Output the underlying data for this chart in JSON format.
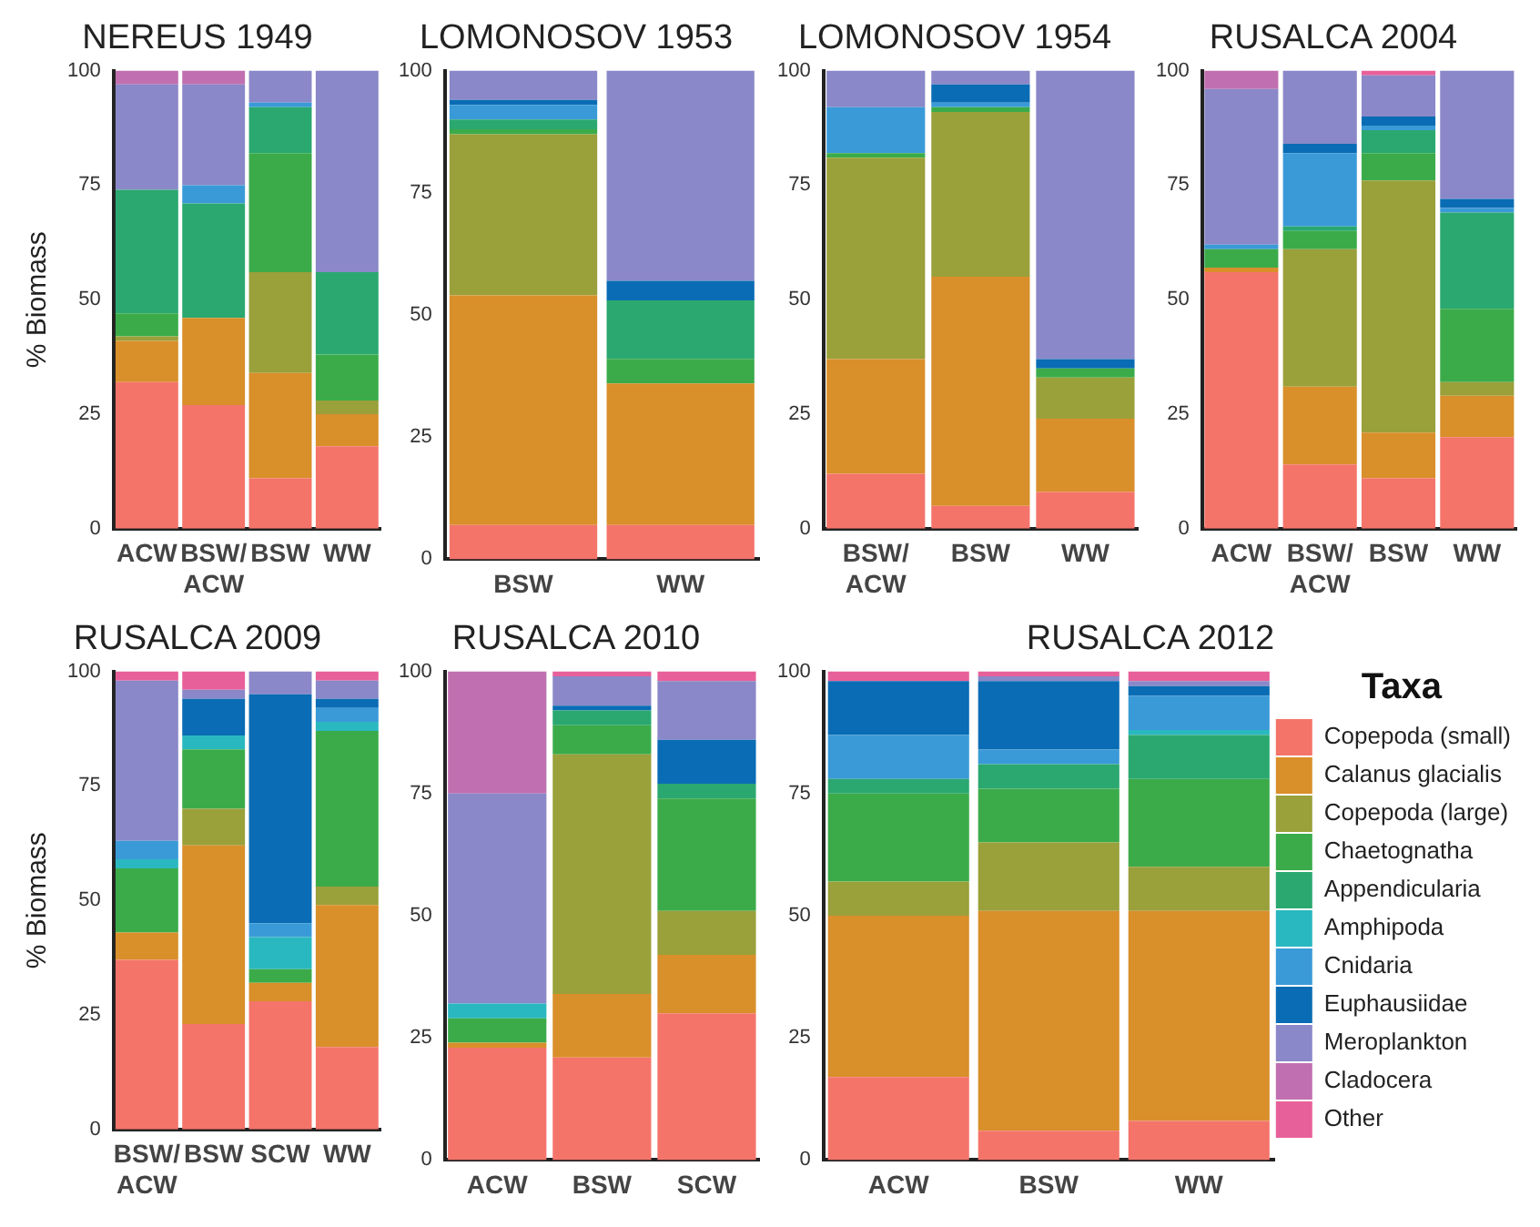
{
  "chart_data": [
    {
      "type": "bar",
      "title": "NEREUS 1949",
      "ylabel": "% Biomass",
      "categories": [
        "ACW",
        "BSW/ACW",
        "BSW",
        "WW"
      ],
      "stacked": true,
      "ylim": [
        0,
        100
      ],
      "yticks": [
        0,
        25,
        50,
        75,
        100
      ],
      "series": [
        {
          "color": "#f4746a",
          "values": [
            32,
            27,
            11,
            18
          ]
        },
        {
          "color": "#d98f2a",
          "values": [
            9,
            19,
            23,
            7
          ]
        },
        {
          "color": "#9aa03a",
          "values": [
            1,
            0,
            22,
            3
          ]
        },
        {
          "color": "#3bab4a",
          "values": [
            5,
            0,
            26,
            10
          ]
        },
        {
          "color": "#2aa870",
          "values": [
            27,
            25,
            10,
            18
          ]
        },
        {
          "color": "#2ab8c0",
          "values": [
            0,
            0,
            0,
            0
          ]
        },
        {
          "color": "#3a9ad8",
          "values": [
            0,
            4,
            1,
            0
          ]
        },
        {
          "color": "#0a6cb4",
          "values": [
            0,
            0,
            0,
            0
          ]
        },
        {
          "color": "#8a88c8",
          "values": [
            23,
            22,
            7,
            44
          ]
        },
        {
          "color": "#c070b0",
          "values": [
            3,
            3,
            0,
            0
          ]
        },
        {
          "color": "#e8609a",
          "values": [
            0,
            0,
            0,
            0
          ]
        }
      ]
    },
    {
      "type": "bar",
      "title": "LOMONOSOV 1953",
      "categories": [
        "BSW",
        "WW"
      ],
      "stacked": true,
      "ylim": [
        0,
        100
      ],
      "yticks": [
        0,
        25,
        50,
        75,
        100
      ],
      "series": [
        {
          "color": "#f4746a",
          "values": [
            7,
            7
          ]
        },
        {
          "color": "#d98f2a",
          "values": [
            47,
            29
          ]
        },
        {
          "color": "#9aa03a",
          "values": [
            33,
            0
          ]
        },
        {
          "color": "#3bab4a",
          "values": [
            1,
            5
          ]
        },
        {
          "color": "#2aa870",
          "values": [
            2,
            12
          ]
        },
        {
          "color": "#2ab8c0",
          "values": [
            0,
            0
          ]
        },
        {
          "color": "#3a9ad8",
          "values": [
            3,
            0
          ]
        },
        {
          "color": "#0a6cb4",
          "values": [
            1,
            4
          ]
        },
        {
          "color": "#8a88c8",
          "values": [
            6,
            43
          ]
        },
        {
          "color": "#c070b0",
          "values": [
            0,
            0
          ]
        },
        {
          "color": "#e8609a",
          "values": [
            0,
            0
          ]
        }
      ]
    },
    {
      "type": "bar",
      "title": "LOMONOSOV 1954",
      "categories": [
        "BSW/ACW",
        "BSW",
        "WW"
      ],
      "stacked": true,
      "ylim": [
        0,
        100
      ],
      "yticks": [
        0,
        25,
        50,
        75,
        100
      ],
      "series": [
        {
          "color": "#f4746a",
          "values": [
            12,
            5,
            8
          ]
        },
        {
          "color": "#d98f2a",
          "values": [
            25,
            50,
            16
          ]
        },
        {
          "color": "#9aa03a",
          "values": [
            44,
            36,
            9
          ]
        },
        {
          "color": "#3bab4a",
          "values": [
            1,
            1,
            2
          ]
        },
        {
          "color": "#2aa870",
          "values": [
            0,
            0,
            0
          ]
        },
        {
          "color": "#2ab8c0",
          "values": [
            0,
            0,
            0
          ]
        },
        {
          "color": "#3a9ad8",
          "values": [
            10,
            1,
            0
          ]
        },
        {
          "color": "#0a6cb4",
          "values": [
            0,
            4,
            2
          ]
        },
        {
          "color": "#8a88c8",
          "values": [
            8,
            3,
            63
          ]
        },
        {
          "color": "#c070b0",
          "values": [
            0,
            0,
            0
          ]
        },
        {
          "color": "#e8609a",
          "values": [
            0,
            0,
            0
          ]
        }
      ]
    },
    {
      "type": "bar",
      "title": "RUSALCA 2004",
      "categories": [
        "ACW",
        "BSW/ACW",
        "BSW",
        "WW"
      ],
      "stacked": true,
      "ylim": [
        0,
        100
      ],
      "yticks": [
        0,
        25,
        50,
        75,
        100
      ],
      "series": [
        {
          "color": "#f4746a",
          "values": [
            56,
            14,
            11,
            20
          ]
        },
        {
          "color": "#d98f2a",
          "values": [
            1,
            17,
            10,
            9
          ]
        },
        {
          "color": "#9aa03a",
          "values": [
            0,
            30,
            55,
            3
          ]
        },
        {
          "color": "#3bab4a",
          "values": [
            4,
            4,
            6,
            16
          ]
        },
        {
          "color": "#2aa870",
          "values": [
            0,
            1,
            5,
            21
          ]
        },
        {
          "color": "#2ab8c0",
          "values": [
            0,
            0,
            0,
            0
          ]
        },
        {
          "color": "#3a9ad8",
          "values": [
            1,
            16,
            1,
            1
          ]
        },
        {
          "color": "#0a6cb4",
          "values": [
            0,
            2,
            2,
            2
          ]
        },
        {
          "color": "#8a88c8",
          "values": [
            34,
            16,
            9,
            28
          ]
        },
        {
          "color": "#c070b0",
          "values": [
            4,
            0,
            0,
            0
          ]
        },
        {
          "color": "#e8609a",
          "values": [
            0,
            0,
            1,
            0
          ]
        }
      ]
    },
    {
      "type": "bar",
      "title": "RUSALCA 2009",
      "ylabel": "% Biomass",
      "categories": [
        "BSW/ACW",
        "BSW",
        "SCW",
        "WW"
      ],
      "stacked": true,
      "ylim": [
        0,
        100
      ],
      "yticks": [
        0,
        25,
        50,
        75,
        100
      ],
      "series": [
        {
          "color": "#f4746a",
          "values": [
            37,
            23,
            28,
            18
          ]
        },
        {
          "color": "#d98f2a",
          "values": [
            6,
            39,
            4,
            31
          ]
        },
        {
          "color": "#9aa03a",
          "values": [
            0,
            8,
            0,
            4
          ]
        },
        {
          "color": "#3bab4a",
          "values": [
            14,
            13,
            3,
            34
          ]
        },
        {
          "color": "#2aa870",
          "values": [
            0,
            0,
            0,
            0
          ]
        },
        {
          "color": "#2ab8c0",
          "values": [
            2,
            3,
            7,
            2
          ]
        },
        {
          "color": "#3a9ad8",
          "values": [
            4,
            0,
            3,
            3
          ]
        },
        {
          "color": "#0a6cb4",
          "values": [
            0,
            8,
            50,
            2
          ]
        },
        {
          "color": "#8a88c8",
          "values": [
            35,
            2,
            5,
            4
          ]
        },
        {
          "color": "#c070b0",
          "values": [
            0,
            0,
            0,
            0
          ]
        },
        {
          "color": "#e8609a",
          "values": [
            2,
            4,
            0,
            2
          ]
        }
      ]
    },
    {
      "type": "bar",
      "title": "RUSALCA 2010",
      "categories": [
        "ACW",
        "BSW",
        "SCW"
      ],
      "stacked": true,
      "ylim": [
        0,
        100
      ],
      "yticks": [
        0,
        25,
        50,
        75,
        100
      ],
      "series": [
        {
          "color": "#f4746a",
          "values": [
            23,
            21,
            30
          ]
        },
        {
          "color": "#d98f2a",
          "values": [
            1,
            13,
            12
          ]
        },
        {
          "color": "#9aa03a",
          "values": [
            0,
            49,
            9
          ]
        },
        {
          "color": "#3bab4a",
          "values": [
            5,
            6,
            23
          ]
        },
        {
          "color": "#2aa870",
          "values": [
            0,
            3,
            3
          ]
        },
        {
          "color": "#2ab8c0",
          "values": [
            3,
            0,
            0
          ]
        },
        {
          "color": "#3a9ad8",
          "values": [
            0,
            0,
            0
          ]
        },
        {
          "color": "#0a6cb4",
          "values": [
            0,
            1,
            9
          ]
        },
        {
          "color": "#8a88c8",
          "values": [
            43,
            6,
            12
          ]
        },
        {
          "color": "#c070b0",
          "values": [
            25,
            0,
            0
          ]
        },
        {
          "color": "#e8609a",
          "values": [
            0,
            1,
            2
          ]
        }
      ]
    },
    {
      "type": "bar",
      "title": "RUSALCA 2012",
      "categories": [
        "ACW",
        "BSW",
        "WW"
      ],
      "stacked": true,
      "ylim": [
        0,
        100
      ],
      "yticks": [
        0,
        25,
        50,
        75,
        100
      ],
      "legend": "right",
      "legend_title": "Taxa",
      "series": [
        {
          "name": "Copepoda (small)",
          "color": "#f4746a",
          "values": [
            17,
            6,
            8
          ]
        },
        {
          "name": "Calanus glacialis",
          "color": "#d98f2a",
          "values": [
            33,
            45,
            43
          ]
        },
        {
          "name": "Copepoda (large)",
          "color": "#9aa03a",
          "values": [
            7,
            14,
            9
          ]
        },
        {
          "name": "Chaetognatha",
          "color": "#3bab4a",
          "values": [
            18,
            11,
            18
          ]
        },
        {
          "name": "Appendicularia",
          "color": "#2aa870",
          "values": [
            3,
            5,
            9
          ]
        },
        {
          "name": "Amphipoda",
          "color": "#2ab8c0",
          "values": [
            0,
            0,
            1
          ]
        },
        {
          "name": "Cnidaria",
          "color": "#3a9ad8",
          "values": [
            9,
            3,
            7
          ]
        },
        {
          "name": "Euphausiidae",
          "color": "#0a6cb4",
          "values": [
            11,
            14,
            2
          ]
        },
        {
          "name": "Meroplankton",
          "color": "#8a88c8",
          "values": [
            0,
            1,
            1
          ]
        },
        {
          "name": "Cladocera",
          "color": "#c070b0",
          "values": [
            0,
            0,
            0
          ]
        },
        {
          "name": "Other",
          "color": "#e8609a",
          "values": [
            2,
            1,
            2
          ]
        }
      ]
    }
  ]
}
